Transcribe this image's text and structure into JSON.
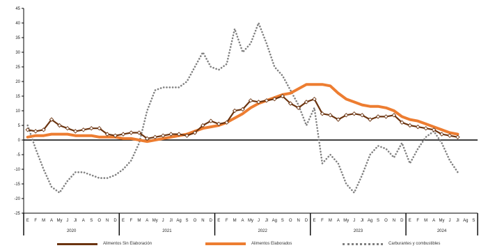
{
  "chart_data": {
    "type": "line",
    "title": "",
    "xlabel": "",
    "ylabel": "",
    "ylim": [
      -25,
      45
    ],
    "yticks": [
      -25,
      -20,
      -15,
      -10,
      -5,
      0,
      5,
      10,
      15,
      20,
      25,
      30,
      35,
      40,
      45
    ],
    "ytick_labels": [
      "-25",
      "-20",
      "-15",
      "-10",
      "-5",
      "0",
      "5",
      "10",
      "15",
      "20",
      "25",
      "30",
      "35",
      "40",
      "45"
    ],
    "month_labels": [
      "E",
      "F",
      "M",
      "A",
      "My",
      "J",
      "Jl",
      "A",
      "S",
      "O",
      "N",
      "D",
      "E",
      "F",
      "M",
      "A",
      "My",
      "J",
      "Jl",
      "Ag",
      "S",
      "O",
      "N",
      "D",
      "E",
      "F",
      "M",
      "A",
      "My",
      "J",
      "Jl",
      "Ag",
      "S",
      "O",
      "N",
      "D",
      "E",
      "F",
      "M",
      "A",
      "My",
      "J",
      "Jl",
      "Ag",
      "S",
      "O",
      "N",
      "D",
      "E",
      "F",
      "M",
      "A",
      "My",
      "J",
      "Jl",
      "Ag",
      "S"
    ],
    "year_labels": [
      "2020",
      "2021",
      "2022",
      "2023",
      "2024"
    ],
    "grid": false,
    "legend_position": "bottom",
    "series": [
      {
        "name": "Alimentos Sin Elaboración",
        "color": "#6b3410",
        "style": "solid-markers",
        "values": [
          3.5,
          3,
          3.5,
          7,
          5,
          4,
          3,
          3.5,
          4,
          4,
          2,
          1.5,
          2,
          2.5,
          2.5,
          0.5,
          1,
          1.5,
          2,
          2,
          1.5,
          2.5,
          5,
          6.5,
          5.5,
          6,
          10,
          10.5,
          13.5,
          13,
          13.5,
          14,
          15,
          12.5,
          11,
          13,
          14,
          9,
          8.5,
          7,
          8.5,
          9,
          8.5,
          7,
          8,
          8,
          8.5,
          6,
          5,
          4.5,
          4,
          3.5,
          2,
          1.5,
          1
        ]
      },
      {
        "name": "Alimentos Elaborados",
        "color": "#ed7d31",
        "style": "solid-thick",
        "values": [
          1,
          1.5,
          1.5,
          2,
          2,
          2,
          1.5,
          1.5,
          1.5,
          1,
          1,
          1,
          0.5,
          0.5,
          0,
          -0.5,
          0,
          0.5,
          1,
          1.5,
          2,
          3,
          4,
          4.5,
          5,
          6,
          7.5,
          9,
          11,
          12.5,
          13.5,
          14.5,
          15.5,
          16,
          17.5,
          19,
          19,
          19,
          18.5,
          16,
          14,
          13,
          12,
          11.5,
          11.5,
          11,
          10,
          8,
          7,
          6.5,
          5.5,
          4.5,
          3.5,
          2.5,
          2
        ]
      },
      {
        "name": "Carburantes y combustibles",
        "color": "#808080",
        "style": "dotted",
        "values": [
          5,
          -3,
          -10,
          -16,
          -18,
          -14,
          -11,
          -11,
          -12,
          -13,
          -13,
          -12,
          -10,
          -7,
          -1,
          10,
          17,
          18,
          18,
          18,
          20,
          25,
          30,
          25,
          24,
          26,
          38,
          30,
          33,
          40,
          33,
          25,
          22,
          17,
          12,
          5,
          11,
          -8,
          -5,
          -8,
          -15,
          -18,
          -12,
          -5,
          -2,
          -3,
          -6,
          -1,
          -8,
          -3,
          1,
          3,
          -1,
          -7,
          -11
        ]
      }
    ]
  }
}
